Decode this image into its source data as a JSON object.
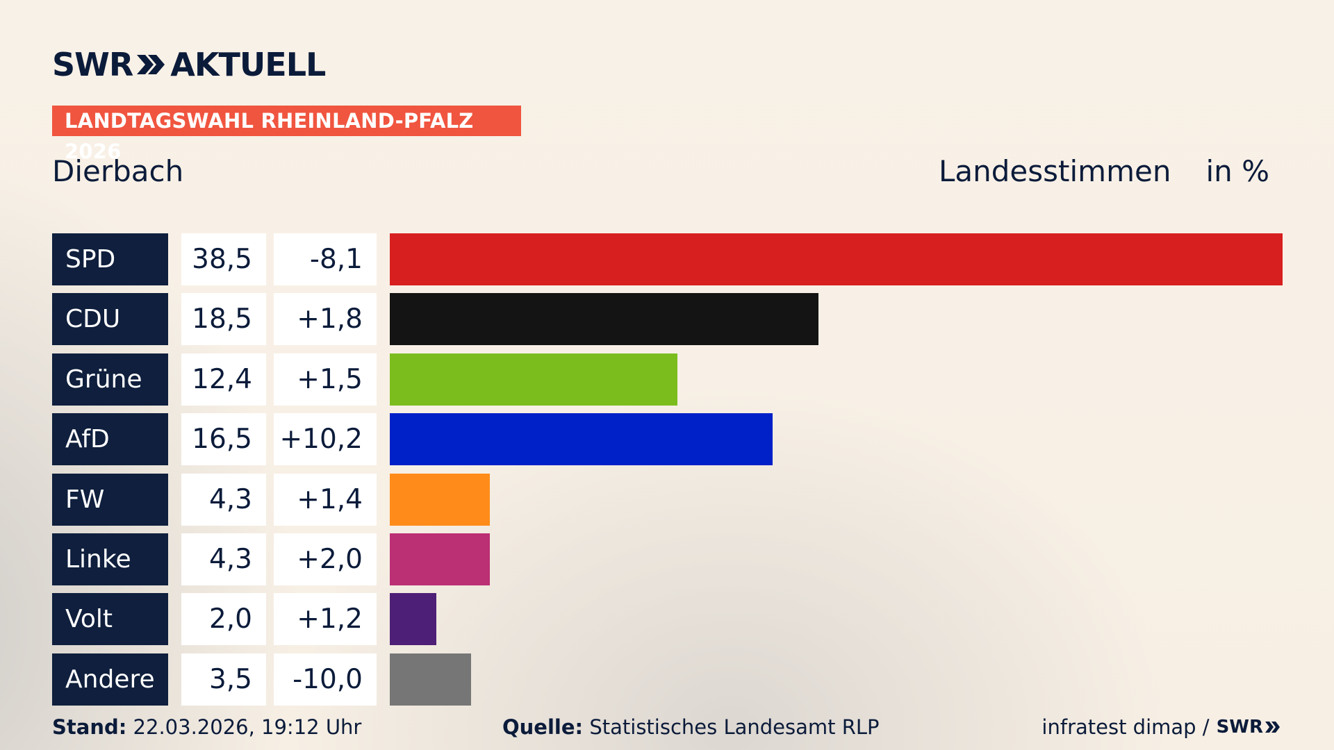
{
  "brand": {
    "logo_left": "SWR",
    "logo_right": "AKTUELL"
  },
  "banner": "LANDTAGSWAHL RHEINLAND-PFALZ 2026",
  "place": "Dierbach",
  "subhead": {
    "label": "Landesstimmen",
    "unit": "in %"
  },
  "chart_data": {
    "type": "bar",
    "orientation": "horizontal",
    "categories": [
      "SPD",
      "CDU",
      "Grüne",
      "AfD",
      "FW",
      "Linke",
      "Volt",
      "Andere"
    ],
    "series": [
      {
        "values": [
          38.5,
          18.5,
          12.4,
          16.5,
          4.3,
          4.3,
          2.0,
          3.5
        ]
      }
    ],
    "value_labels": [
      "38,5",
      "18,5",
      "12,4",
      "16,5",
      "4,3",
      "4,3",
      "2,0",
      "3,5"
    ],
    "diff_labels": [
      "-8,1",
      "+1,8",
      "+1,5",
      "+10,2",
      "+1,4",
      "+2,0",
      "+1,2",
      "-10,0"
    ],
    "diffs": [
      -8.1,
      1.8,
      1.5,
      10.2,
      1.4,
      2.0,
      1.2,
      -10.0
    ],
    "colors": [
      "#d71f1f",
      "#141414",
      "#7cbd1e",
      "#0021c8",
      "#ff8c1a",
      "#bb2f74",
      "#4e1f76",
      "#767676"
    ],
    "xlim": [
      0,
      38.5
    ],
    "grid": false,
    "legend": "none"
  },
  "footer": {
    "stand_label": "Stand:",
    "stand_value": "22.03.2026, 19:12 Uhr",
    "quelle_label": "Quelle:",
    "quelle_value": "Statistisches Landesamt RLP",
    "credit": "infratest dimap /",
    "credit_logo": "SWR"
  }
}
